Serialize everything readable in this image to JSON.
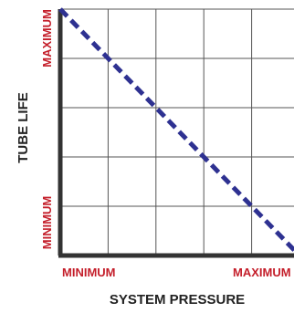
{
  "chart_data": {
    "type": "line",
    "xlabel": "SYSTEM PRESSURE",
    "ylabel": "TUBE LIFE",
    "x_tick_labels": [
      "MINIMUM",
      "MAXIMUM"
    ],
    "y_tick_labels": [
      "MINIMUM",
      "MAXIMUM"
    ],
    "xlim": [
      0,
      5
    ],
    "ylim": [
      0,
      5
    ],
    "grid": true,
    "series": [
      {
        "x": [
          0,
          5
        ],
        "y": [
          5,
          0
        ],
        "style": "dashed",
        "color": "#2e3191"
      }
    ],
    "colors": {
      "tick_labels": "#c41e2a",
      "axis_titles": "#222222",
      "grid": "#555555",
      "axes": "#333333",
      "line": "#2e3191"
    }
  }
}
